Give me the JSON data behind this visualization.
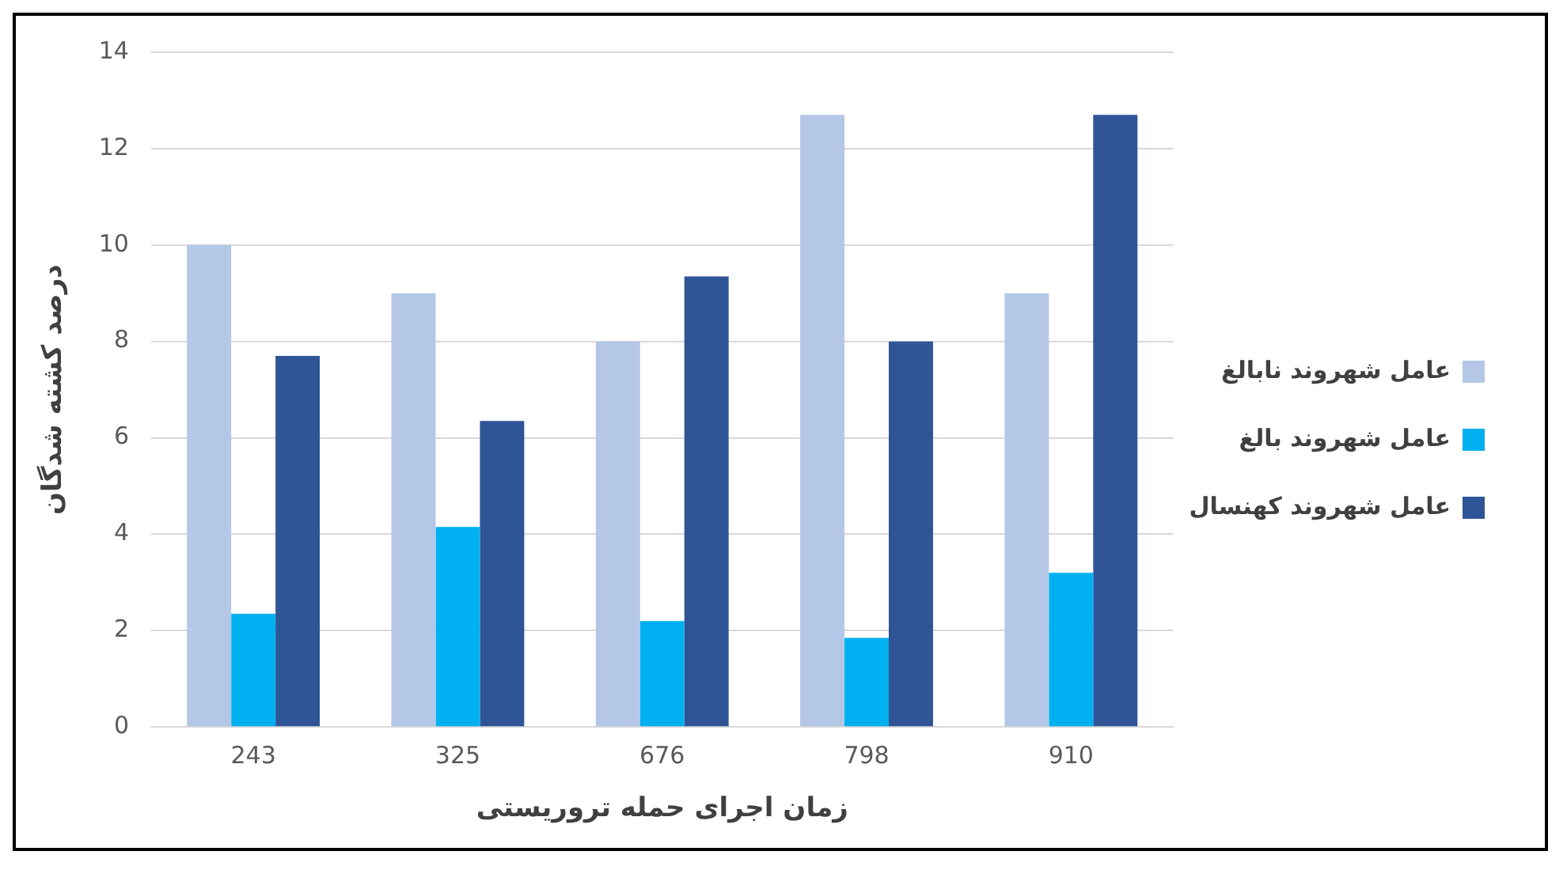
{
  "chart_data": {
    "type": "bar",
    "xlabel": "زمان اجرای حمله تروریستی",
    "ylabel": "درصد کشته شدگان",
    "categories": [
      "243",
      "325",
      "676",
      "798",
      "910"
    ],
    "series": [
      {
        "name": "عامل شهروند نابالغ",
        "color": "#b4c7e7",
        "values": [
          10,
          9,
          8,
          12.7,
          9
        ]
      },
      {
        "name": "عامل شهروند بالغ",
        "color": "#00b0f0",
        "values": [
          2.35,
          4.15,
          2.2,
          1.85,
          3.2
        ]
      },
      {
        "name": "عامل شهروند کهنسال",
        "color": "#2f5597",
        "values": [
          7.7,
          6.35,
          9.35,
          8,
          12.7
        ]
      }
    ],
    "ylim": [
      0,
      14
    ],
    "yticks": [
      0,
      2,
      4,
      6,
      8,
      10,
      12,
      14
    ],
    "grid": "y",
    "legend": "right"
  }
}
